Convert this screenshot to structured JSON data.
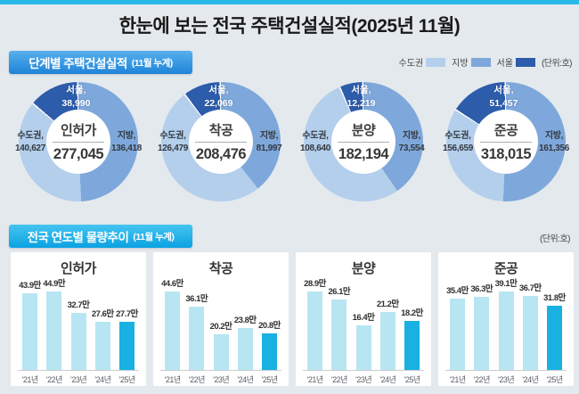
{
  "page": {
    "title": "한눈에 보는 전국 주택건설실적(2025년 11월)"
  },
  "colors": {
    "accent_strip": "#29b9e8",
    "sudogwon": "#b3cfec",
    "jibang": "#7ea8db",
    "seoul": "#2d5cab",
    "bar": "#b7e6f2",
    "bar_highlight": "#18b1e2"
  },
  "section1": {
    "header": "단계별 주택건설실적",
    "header_sub": "(11월 누계)",
    "unit": "(단위:호)",
    "legend": [
      {
        "label": "수도권",
        "color": "#b3cfec"
      },
      {
        "label": "지방",
        "color": "#7ea8db"
      },
      {
        "label": "서울",
        "color": "#2d5cab"
      }
    ]
  },
  "section2": {
    "header": "전국 연도별 물량추이",
    "header_sub": "(11월 누계)",
    "unit": "(단위:호)"
  },
  "chart_data": [
    {
      "type": "donut",
      "title": "인허가",
      "total": 277045,
      "total_label": "277,045",
      "segments": {
        "seoul": {
          "label": "서울,",
          "value": 38990,
          "value_label": "38,990"
        },
        "sudogwon": {
          "label": "수도권,",
          "value": 140627,
          "value_label": "140,627"
        },
        "jibang": {
          "label": "지방,",
          "value": 136418,
          "value_label": "136,418"
        }
      }
    },
    {
      "type": "donut",
      "title": "착공",
      "total": 208476,
      "total_label": "208,476",
      "segments": {
        "seoul": {
          "label": "서울,",
          "value": 22069,
          "value_label": "22,069"
        },
        "sudogwon": {
          "label": "수도권,",
          "value": 126479,
          "value_label": "126,479"
        },
        "jibang": {
          "label": "지방,",
          "value": 81997,
          "value_label": "81,997"
        }
      }
    },
    {
      "type": "donut",
      "title": "분양",
      "total": 182194,
      "total_label": "182,194",
      "segments": {
        "seoul": {
          "label": "서울,",
          "value": 12219,
          "value_label": "12,219"
        },
        "sudogwon": {
          "label": "수도권,",
          "value": 108640,
          "value_label": "108,640"
        },
        "jibang": {
          "label": "지방,",
          "value": 73554,
          "value_label": "73,554"
        }
      }
    },
    {
      "type": "donut",
      "title": "준공",
      "total": 318015,
      "total_label": "318,015",
      "segments": {
        "seoul": {
          "label": "서울,",
          "value": 51457,
          "value_label": "51,457"
        },
        "sudogwon": {
          "label": "수도권,",
          "value": 156659,
          "value_label": "156,659"
        },
        "jibang": {
          "label": "지방,",
          "value": 161356,
          "value_label": "161,356"
        }
      }
    },
    {
      "type": "bar",
      "title": "인허가",
      "categories": [
        "’21년",
        "’22년",
        "’23년",
        "’24년",
        "’25년"
      ],
      "values": [
        43.9,
        44.9,
        32.7,
        27.6,
        27.7
      ],
      "value_labels": [
        "43.9만",
        "44.9만",
        "32.7만",
        "27.6만",
        "27.7만"
      ],
      "highlight_index": 4,
      "ylabel": "",
      "xlabel": ""
    },
    {
      "type": "bar",
      "title": "착공",
      "categories": [
        "’21년",
        "’22년",
        "’23년",
        "’24년",
        "’25년"
      ],
      "values": [
        44.6,
        36.1,
        20.2,
        23.8,
        20.8
      ],
      "value_labels": [
        "44.6만",
        "36.1만",
        "20.2만",
        "23.8만",
        "20.8만"
      ],
      "highlight_index": 4,
      "ylabel": "",
      "xlabel": ""
    },
    {
      "type": "bar",
      "title": "분양",
      "categories": [
        "’21년",
        "’22년",
        "’23년",
        "’24년",
        "’25년"
      ],
      "values": [
        28.9,
        26.1,
        16.4,
        21.2,
        18.2
      ],
      "value_labels": [
        "28.9만",
        "26.1만",
        "16.4만",
        "21.2만",
        "18.2만"
      ],
      "highlight_index": 4,
      "ylabel": "",
      "xlabel": ""
    },
    {
      "type": "bar",
      "title": "준공",
      "categories": [
        "’21년",
        "’22년",
        "’23년",
        "’24년",
        "’25년"
      ],
      "values": [
        35.4,
        36.3,
        39.1,
        36.7,
        31.8
      ],
      "value_labels": [
        "35.4만",
        "36.3만",
        "39.1만",
        "36.7만",
        "31.8만"
      ],
      "highlight_index": 4,
      "ylabel": "",
      "xlabel": ""
    }
  ]
}
